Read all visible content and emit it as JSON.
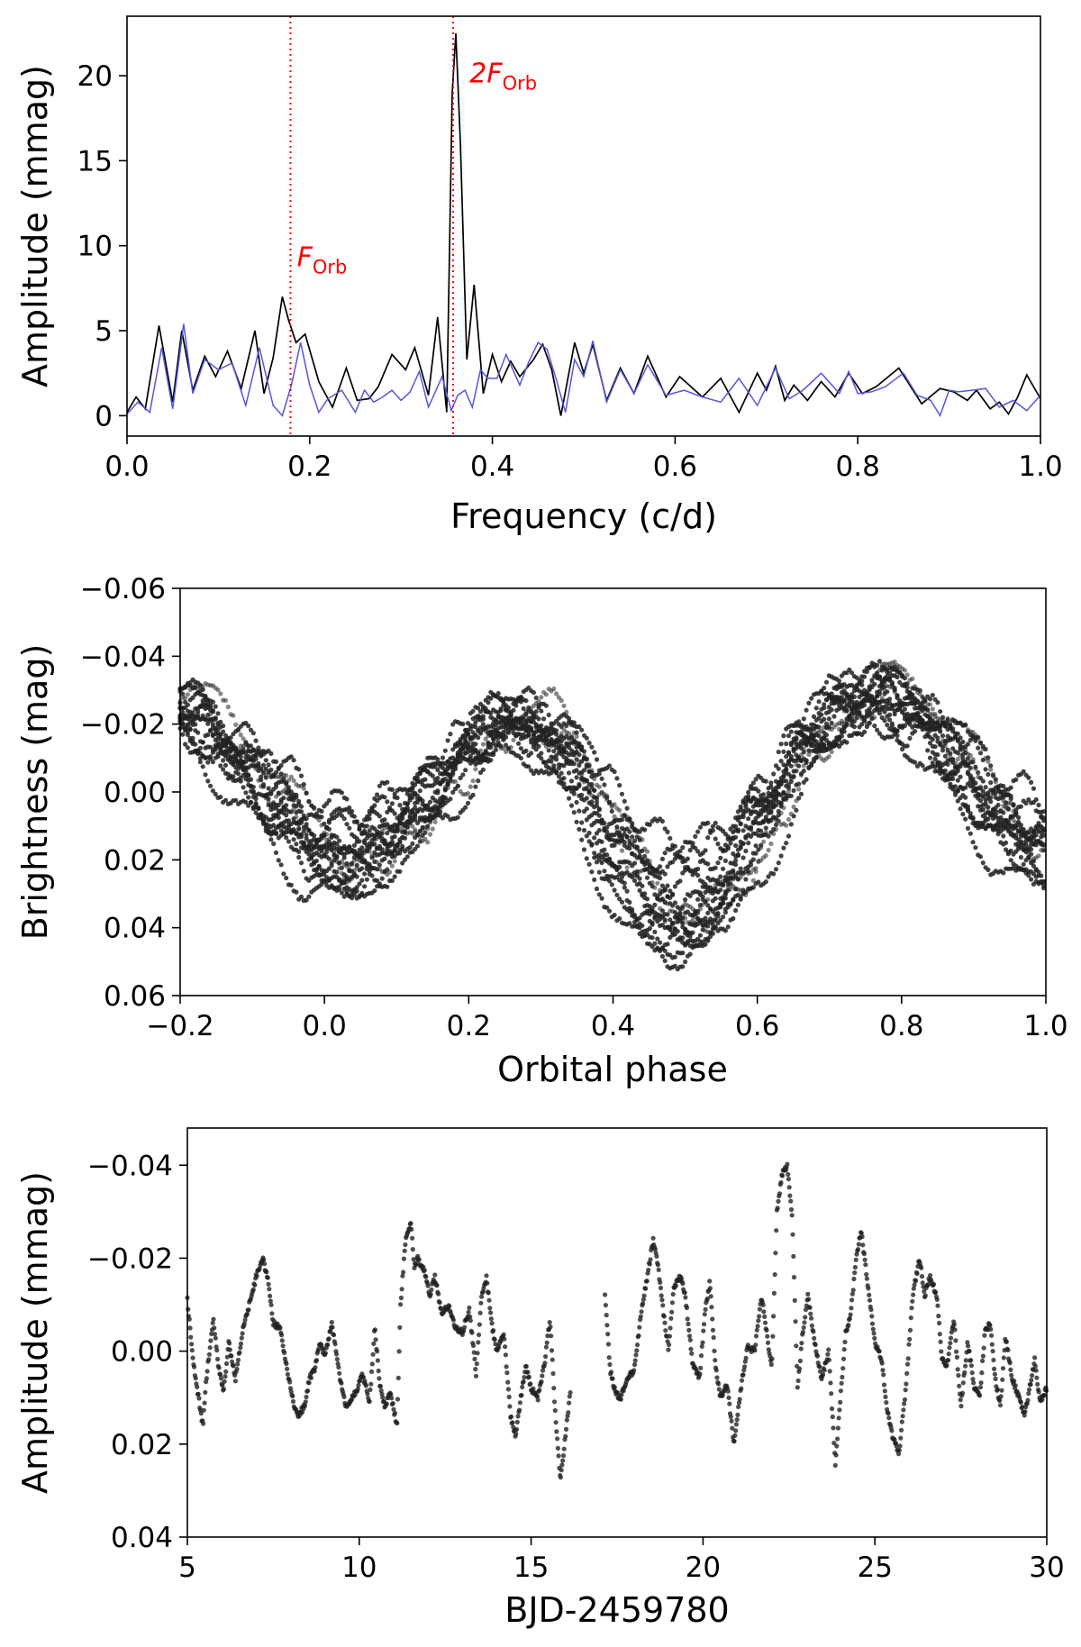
{
  "chart_data": [
    {
      "type": "line",
      "xlabel": "Frequency (c/d)",
      "ylabel": "Amplitude (mmag)",
      "xlim": [
        0.0,
        1.0
      ],
      "ylim": [
        -1.2,
        23.5
      ],
      "xticks": [
        0.0,
        0.2,
        0.4,
        0.6,
        0.8,
        1.0
      ],
      "xtick_labels": [
        "0.0",
        "0.2",
        "0.4",
        "0.6",
        "0.8",
        "1.0"
      ],
      "yticks": [
        0,
        5,
        10,
        15,
        20
      ],
      "ytick_labels": [
        "0",
        "5",
        "10",
        "15",
        "20"
      ],
      "vlines": [
        {
          "x": 0.179,
          "color": "#ff0000",
          "style": "dotted"
        },
        {
          "x": 0.357,
          "color": "#ff0000",
          "style": "dotted"
        }
      ],
      "annotations": [
        {
          "base": "F",
          "sub": "Orb",
          "x": 0.186,
          "y": 8.8,
          "color": "#ff0000"
        },
        {
          "base": "2F",
          "sub": "Orb",
          "x": 0.375,
          "y": 19.6,
          "color": "#ff0000"
        }
      ],
      "series": [
        {
          "color": "#000000",
          "x": [
            0.0,
            0.01,
            0.02,
            0.035,
            0.05,
            0.06,
            0.072,
            0.085,
            0.097,
            0.11,
            0.125,
            0.14,
            0.15,
            0.16,
            0.17,
            0.177,
            0.185,
            0.195,
            0.21,
            0.225,
            0.24,
            0.252,
            0.265,
            0.275,
            0.29,
            0.305,
            0.315,
            0.33,
            0.34,
            0.35,
            0.356,
            0.36,
            0.365,
            0.372,
            0.38,
            0.39,
            0.4,
            0.41,
            0.42,
            0.43,
            0.445,
            0.455,
            0.465,
            0.475,
            0.49,
            0.5,
            0.51,
            0.525,
            0.54,
            0.555,
            0.57,
            0.59,
            0.605,
            0.63,
            0.65,
            0.67,
            0.69,
            0.7,
            0.71,
            0.72,
            0.73,
            0.745,
            0.76,
            0.775,
            0.79,
            0.805,
            0.82,
            0.845,
            0.87,
            0.89,
            0.905,
            0.92,
            0.93,
            0.945,
            0.955,
            0.965,
            0.975,
            0.985,
            1.0
          ],
          "y": [
            0.2,
            1.1,
            0.4,
            5.3,
            0.8,
            5.0,
            1.5,
            3.5,
            2.3,
            3.8,
            1.6,
            5.0,
            1.3,
            3.4,
            7.0,
            5.6,
            4.3,
            4.8,
            2.0,
            0.5,
            2.8,
            0.9,
            1.0,
            1.7,
            3.6,
            2.7,
            4.0,
            1.2,
            5.8,
            0.2,
            19.0,
            22.5,
            16.0,
            3.3,
            7.7,
            1.3,
            3.6,
            2.0,
            3.2,
            2.3,
            3.3,
            4.2,
            2.7,
            0.0,
            4.3,
            2.5,
            4.2,
            0.9,
            2.8,
            1.3,
            3.5,
            1.1,
            2.3,
            1.1,
            2.2,
            0.2,
            2.5,
            1.5,
            2.9,
            0.9,
            1.8,
            0.9,
            2.0,
            1.1,
            2.5,
            1.3,
            1.7,
            2.8,
            0.7,
            1.6,
            1.4,
            0.9,
            1.5,
            0.4,
            0.8,
            0.1,
            1.1,
            2.4,
            1.0
          ]
        },
        {
          "color": "#5555dd",
          "x": [
            0.0,
            0.012,
            0.025,
            0.038,
            0.05,
            0.062,
            0.072,
            0.085,
            0.1,
            0.115,
            0.13,
            0.145,
            0.16,
            0.17,
            0.18,
            0.19,
            0.2,
            0.21,
            0.22,
            0.235,
            0.25,
            0.26,
            0.27,
            0.28,
            0.29,
            0.3,
            0.31,
            0.32,
            0.33,
            0.345,
            0.355,
            0.362,
            0.37,
            0.378,
            0.387,
            0.395,
            0.405,
            0.415,
            0.43,
            0.44,
            0.45,
            0.46,
            0.47,
            0.48,
            0.49,
            0.5,
            0.51,
            0.525,
            0.54,
            0.555,
            0.57,
            0.59,
            0.61,
            0.63,
            0.65,
            0.67,
            0.69,
            0.71,
            0.725,
            0.74,
            0.76,
            0.78,
            0.79,
            0.8,
            0.815,
            0.83,
            0.85,
            0.865,
            0.88,
            0.89,
            0.9,
            0.91,
            0.925,
            0.94,
            0.955,
            0.97,
            0.985,
            1.0
          ],
          "y": [
            0.1,
            0.8,
            0.2,
            4.0,
            0.4,
            5.4,
            1.3,
            3.3,
            2.7,
            3.1,
            0.6,
            4.0,
            0.6,
            0.0,
            1.8,
            4.3,
            1.8,
            0.2,
            1.0,
            1.5,
            0.2,
            1.5,
            0.8,
            1.1,
            1.5,
            0.9,
            1.4,
            2.6,
            0.5,
            2.3,
            0.3,
            1.2,
            1.5,
            0.5,
            2.7,
            2.2,
            2.2,
            3.6,
            1.8,
            3.2,
            4.3,
            3.9,
            2.1,
            0.2,
            3.3,
            2.3,
            4.4,
            0.8,
            2.7,
            1.3,
            3.0,
            1.2,
            1.5,
            1.1,
            0.8,
            2.2,
            0.6,
            2.8,
            1.0,
            1.5,
            2.5,
            1.3,
            2.6,
            1.3,
            1.4,
            1.7,
            2.5,
            1.2,
            0.9,
            0.0,
            1.5,
            1.4,
            1.5,
            1.6,
            0.5,
            0.9,
            0.3,
            1.2
          ]
        }
      ]
    },
    {
      "type": "scatter",
      "xlabel": "Orbital phase",
      "ylabel": "Brightness (mag)",
      "xlim": [
        -0.2,
        1.0
      ],
      "ylim": [
        0.06,
        -0.06
      ],
      "xticks": [
        -0.2,
        0.0,
        0.2,
        0.4,
        0.6,
        0.8,
        1.0
      ],
      "xtick_labels": [
        "−0.2",
        "0.0",
        "0.2",
        "0.4",
        "0.6",
        "0.8",
        "1.0"
      ],
      "yticks": [
        -0.06,
        -0.04,
        -0.02,
        0.0,
        0.02,
        0.04,
        0.06
      ],
      "ytick_labels": [
        "−0.06",
        "−0.04",
        "−0.02",
        "0.00",
        "0.02",
        "0.04",
        "0.06"
      ],
      "mean_curve": {
        "x": [
          -0.2,
          -0.15,
          -0.1,
          -0.05,
          0.0,
          0.05,
          0.1,
          0.15,
          0.2,
          0.25,
          0.3,
          0.35,
          0.4,
          0.45,
          0.5,
          0.55,
          0.6,
          0.65,
          0.7,
          0.75,
          0.8,
          0.85,
          0.9,
          0.95,
          1.0
        ],
        "y": [
          -0.026,
          -0.017,
          -0.007,
          0.005,
          0.016,
          0.018,
          0.012,
          0.002,
          -0.011,
          -0.02,
          -0.02,
          -0.009,
          0.011,
          0.028,
          0.033,
          0.028,
          0.012,
          -0.006,
          -0.02,
          -0.027,
          -0.027,
          -0.018,
          -0.004,
          0.008,
          0.016
        ]
      },
      "cycles": 14,
      "scatter_spread": 0.012,
      "point_color": "#222222"
    },
    {
      "type": "scatter",
      "xlabel": "BJD-2459780",
      "ylabel": "Amplitude (mmag)",
      "xlim": [
        5,
        30
      ],
      "ylim": [
        0.04,
        -0.048
      ],
      "xticks": [
        5,
        10,
        15,
        20,
        25,
        30
      ],
      "xtick_labels": [
        "5",
        "10",
        "15",
        "20",
        "25",
        "30"
      ],
      "yticks": [
        -0.04,
        -0.02,
        0.0,
        0.02,
        0.04
      ],
      "ytick_labels": [
        "−0.04",
        "−0.02",
        "0.00",
        "0.02",
        "0.04"
      ],
      "point_color": "#222222",
      "segments": [
        {
          "x": [
            5.0,
            5.2,
            5.45,
            5.55,
            5.75,
            5.9,
            6.05,
            6.2,
            6.4,
            6.6,
            6.8,
            7.0,
            7.2,
            7.35,
            7.5,
            7.7,
            7.9,
            8.05,
            8.2,
            8.4,
            8.55,
            8.7,
            8.85,
            9.0,
            9.2,
            9.4,
            9.6,
            9.8,
            9.95,
            10.1,
            10.3,
            10.45,
            10.6,
            10.75,
            10.9,
            11.1,
            11.2,
            11.35,
            11.5,
            11.6,
            11.7,
            11.9,
            12.05,
            12.2,
            12.4,
            12.6,
            12.8,
            13.0,
            13.2,
            13.4,
            13.55,
            13.7,
            13.85,
            14.0,
            14.2,
            14.4,
            14.55,
            14.7,
            14.85,
            15.0,
            15.2,
            15.4,
            15.55,
            15.7,
            15.85,
            16.0,
            16.15
          ],
          "y": [
            -0.011,
            0.004,
            0.016,
            0.006,
            -0.007,
            0.003,
            0.009,
            -0.002,
            0.006,
            -0.004,
            -0.01,
            -0.016,
            -0.02,
            -0.015,
            -0.006,
            -0.005,
            0.004,
            0.01,
            0.014,
            0.012,
            0.006,
            0.004,
            -0.002,
            0.001,
            -0.006,
            0.004,
            0.012,
            0.01,
            0.008,
            0.005,
            0.011,
            -0.005,
            0.007,
            0.012,
            0.009,
            0.016,
            -0.01,
            -0.024,
            -0.028,
            -0.018,
            -0.02,
            -0.017,
            -0.012,
            -0.016,
            -0.008,
            -0.01,
            -0.005,
            -0.004,
            -0.009,
            0.005,
            -0.011,
            -0.016,
            -0.006,
            0.0,
            -0.004,
            0.014,
            0.018,
            0.01,
            0.003,
            0.008,
            0.01,
            0.002,
            -0.007,
            0.013,
            0.028,
            0.018,
            0.008
          ]
        },
        {
          "x": [
            17.15,
            17.3,
            17.45,
            17.6,
            17.8,
            18.0,
            18.2,
            18.4,
            18.55,
            18.7,
            18.85,
            19.0,
            19.15,
            19.35,
            19.5,
            19.7,
            19.9,
            20.05,
            20.2,
            20.35,
            20.5,
            20.7,
            20.9,
            21.1,
            21.3,
            21.5,
            21.7,
            21.85,
            22.0,
            22.15,
            22.3,
            22.45,
            22.6,
            22.75,
            22.9,
            23.05,
            23.25,
            23.45,
            23.65,
            23.85,
            24.0,
            24.15,
            24.3,
            24.45,
            24.6,
            24.8,
            25.0,
            25.2,
            25.35,
            25.5,
            25.7,
            25.9,
            26.1,
            26.3,
            26.45,
            26.6,
            26.8,
            26.95,
            27.1,
            27.3,
            27.5,
            27.7,
            27.9,
            28.05,
            28.2,
            28.35,
            28.5,
            28.65,
            28.8,
            29.0,
            29.2,
            29.35,
            29.5,
            29.65,
            29.8,
            30.0
          ],
          "y": [
            -0.012,
            0.004,
            0.009,
            0.01,
            0.006,
            0.004,
            -0.008,
            -0.017,
            -0.024,
            -0.018,
            -0.008,
            0.0,
            -0.014,
            -0.016,
            -0.011,
            0.003,
            0.006,
            -0.008,
            -0.015,
            0.002,
            0.01,
            0.007,
            0.02,
            0.008,
            -0.001,
            0.0,
            -0.012,
            -0.004,
            0.004,
            -0.03,
            -0.038,
            -0.04,
            -0.028,
            0.008,
            -0.004,
            -0.012,
            -0.002,
            0.006,
            0.0,
            0.024,
            0.01,
            -0.004,
            -0.008,
            -0.02,
            -0.026,
            -0.014,
            -0.002,
            0.002,
            0.012,
            0.018,
            0.022,
            0.008,
            -0.012,
            -0.02,
            -0.012,
            -0.016,
            -0.012,
            0.002,
            0.003,
            -0.007,
            0.012,
            -0.002,
            0.008,
            0.01,
            -0.004,
            -0.006,
            0.006,
            0.012,
            -0.003,
            0.006,
            0.01,
            0.014,
            0.008,
            0.002,
            0.011,
            0.008
          ]
        }
      ]
    }
  ]
}
